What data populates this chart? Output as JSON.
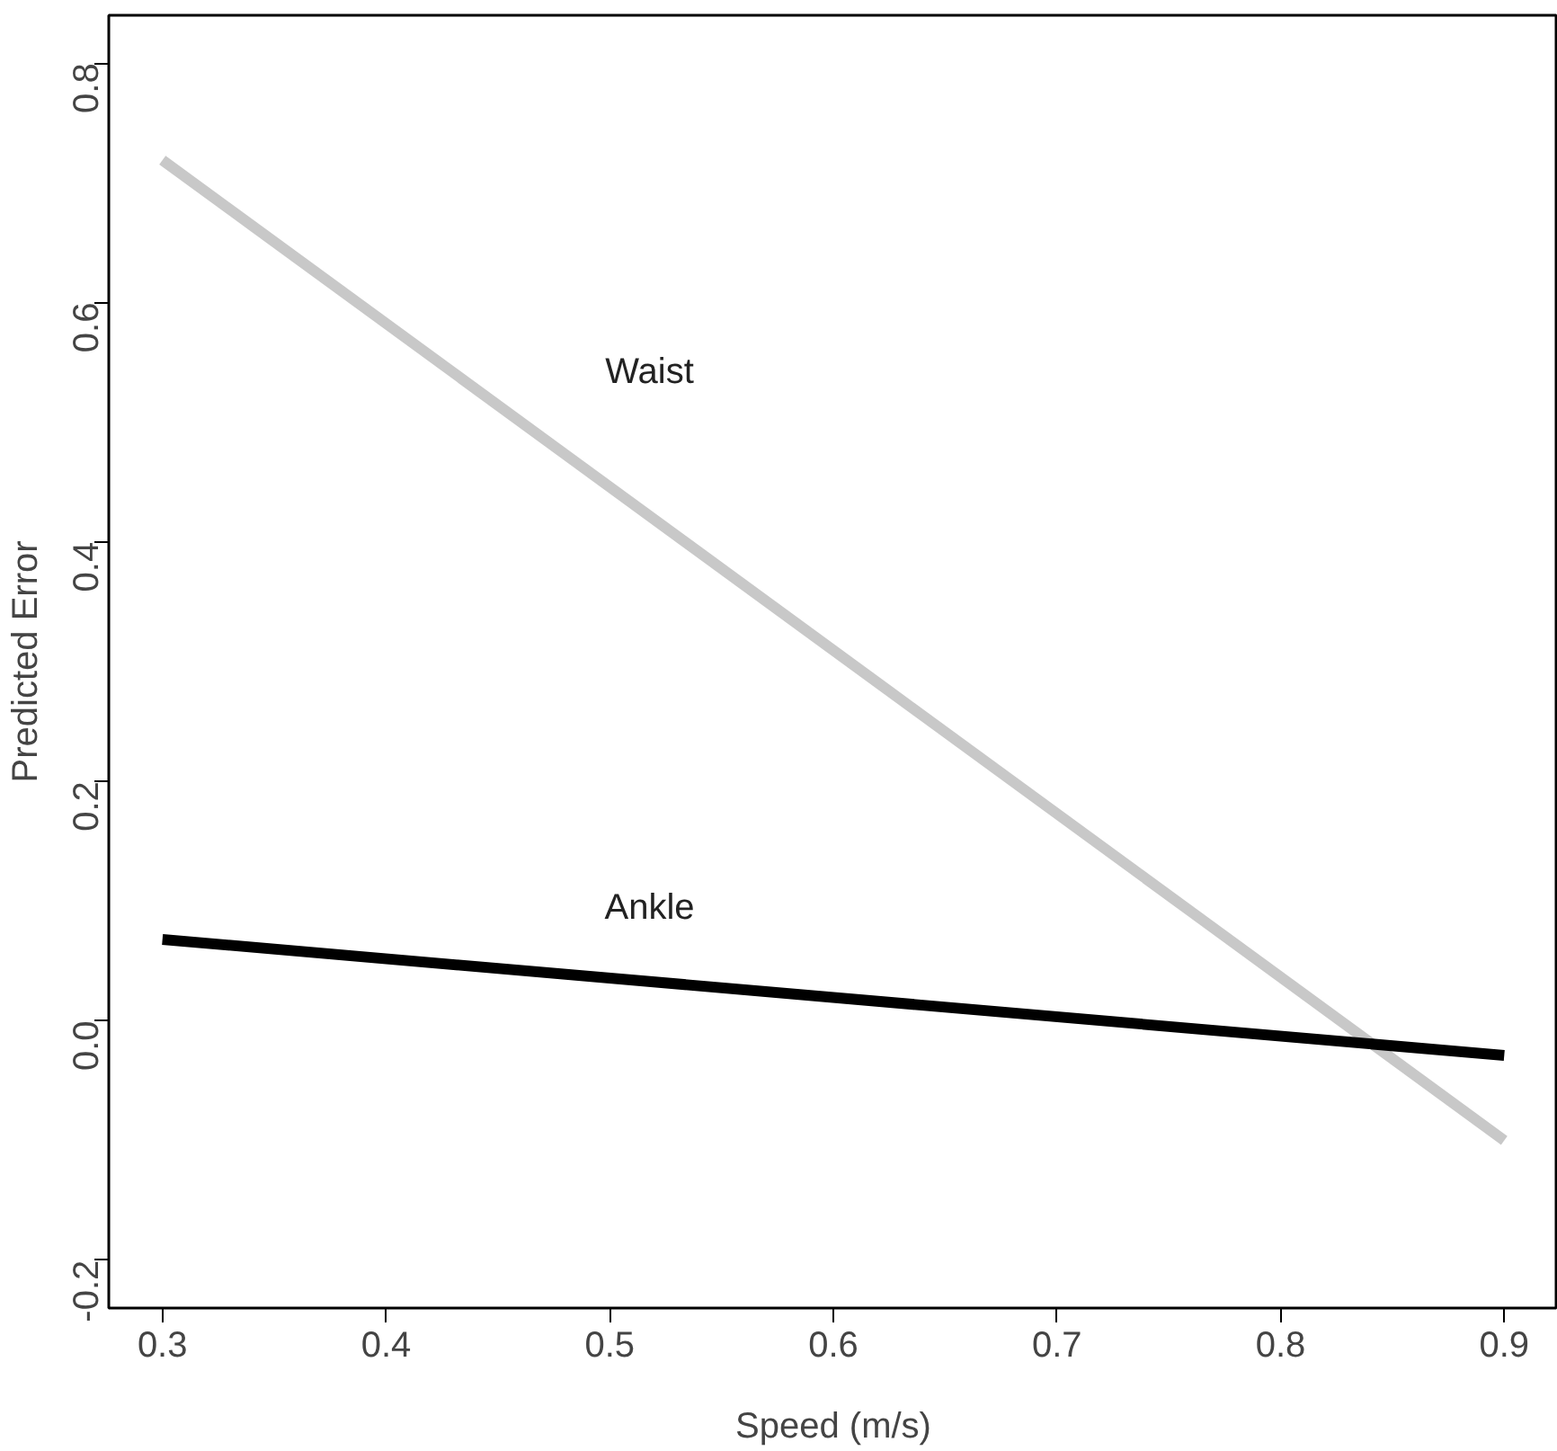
{
  "chart_data": {
    "type": "line",
    "xlabel": "Speed (m/s)",
    "ylabel": "Predicted Error",
    "x": [
      0.3,
      0.9
    ],
    "series": [
      {
        "name": "Waist",
        "color": "#c8c8c8",
        "values": [
          0.719,
          -0.1
        ]
      },
      {
        "name": "Ankle",
        "color": "#000000",
        "values": [
          0.068,
          -0.029
        ]
      }
    ],
    "xlim": [
      0.276,
      0.924
    ],
    "ylim": [
      -0.24,
      0.84
    ],
    "xticks": [
      0.3,
      0.4,
      0.5,
      0.6,
      0.7,
      0.8,
      0.9
    ],
    "yticks": [
      -0.2,
      {
        "value": 0,
        "label": "0.0"
      },
      0.2,
      0.4,
      0.6,
      0.8
    ],
    "grid": false,
    "legend": false,
    "marker": "none",
    "line_style": "solid"
  }
}
